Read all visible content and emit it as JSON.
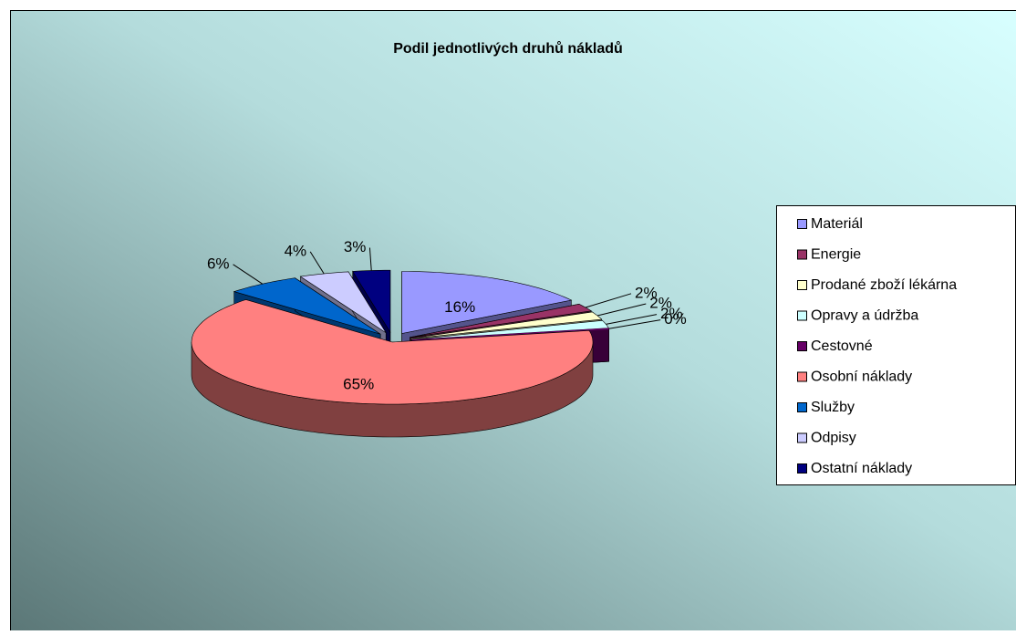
{
  "chart_data": {
    "type": "pie3d",
    "title": "Podil jednotlivých  druhů nákladů",
    "categories": [
      "Materiál",
      "Energie",
      "Prodané zboží lékárna",
      "Opravy a údržba",
      "Cestovné",
      "Osobní náklady",
      "Služby",
      "Odpisy",
      "Ostatní náklady"
    ],
    "values": [
      16,
      2,
      2,
      2,
      0,
      65,
      6,
      4,
      3
    ],
    "value_labels": [
      "16%",
      "2%",
      "2%",
      "2%",
      "0%",
      "65%",
      "6%",
      "4%",
      "3%"
    ],
    "colors": [
      "#9999ff",
      "#993366",
      "#ffffcc",
      "#ccffff",
      "#660066",
      "#ff8080",
      "#0066cc",
      "#ccccff",
      "#000080"
    ],
    "legend": "right"
  }
}
